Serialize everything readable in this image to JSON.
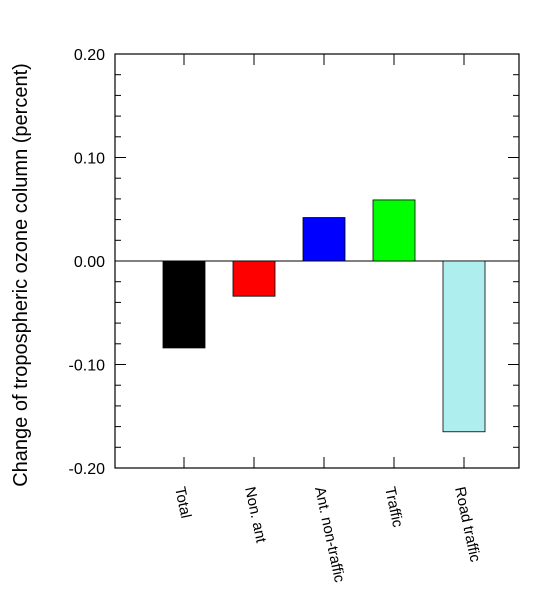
{
  "chart_data": {
    "type": "bar",
    "title": "",
    "xlabel": "",
    "ylabel": "Change of tropospheric ozone column (percent)",
    "ylim": [
      -0.2,
      0.2
    ],
    "yticks": [
      -0.2,
      -0.1,
      0.0,
      0.1,
      0.2
    ],
    "ytick_labels": [
      "-0.20",
      "-0.10",
      "0.00",
      "0.10",
      "0.20"
    ],
    "categories": [
      "Total",
      "Non. ant",
      "Ant. non-traffic",
      "Traffic",
      "Road traffic"
    ],
    "values": [
      -0.084,
      -0.034,
      0.042,
      0.059,
      -0.165
    ],
    "colors": [
      "#000000",
      "#ff0000",
      "#0000ff",
      "#00ff00",
      "#afeeee"
    ],
    "grid": false,
    "legend": "none"
  }
}
